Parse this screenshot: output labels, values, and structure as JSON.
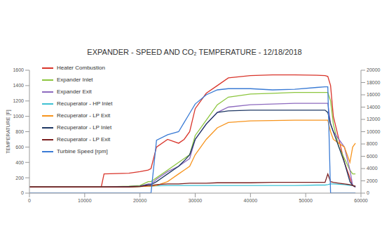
{
  "chart_data": {
    "type": "line",
    "title": "EXPANDER - SPEED AND CO₂ TEMPERATURE - 12/18/2018",
    "y_label": "TEMPERATURE [F]",
    "x": [
      0,
      10000,
      13000,
      13500,
      18000,
      20000,
      21500,
      22000,
      23000,
      25000,
      27000,
      28000,
      29000,
      30000,
      32000,
      34000,
      36000,
      40000,
      44000,
      48000,
      52000,
      53500,
      54000,
      54500,
      55000,
      56000,
      57000,
      58000,
      58500,
      59000
    ],
    "xlim": [
      0,
      60000
    ],
    "xticks": [
      0,
      10000,
      20000,
      30000,
      40000,
      50000,
      60000
    ],
    "ylim": [
      0,
      1600
    ],
    "yticks": [
      0,
      200,
      400,
      600,
      800,
      1000,
      1200,
      1400,
      1600
    ],
    "y2lim": [
      0,
      20000
    ],
    "y2ticks": [
      0,
      2000,
      4000,
      6000,
      8000,
      10000,
      12000,
      14000,
      16000,
      18000,
      20000
    ],
    "grid": false,
    "legend": "upper left",
    "series": [
      {
        "name": "Heater Combustion",
        "color": "#d9352b",
        "values": [
          80,
          80,
          80,
          250,
          260,
          280,
          300,
          320,
          600,
          700,
          650,
          700,
          800,
          1100,
          1300,
          1400,
          1500,
          1530,
          1540,
          1540,
          1535,
          1530,
          1520,
          1400,
          1000,
          700,
          400,
          200,
          100,
          80
        ]
      },
      {
        "name": "Expander Inlet",
        "color": "#8dc63f",
        "values": [
          80,
          80,
          80,
          80,
          90,
          100,
          150,
          150,
          200,
          300,
          400,
          450,
          500,
          750,
          950,
          1150,
          1250,
          1290,
          1300,
          1310,
          1310,
          1310,
          1310,
          1200,
          900,
          600,
          450,
          300,
          250,
          250
        ]
      },
      {
        "name": "Expander Exit",
        "color": "#8e6bbf",
        "values": [
          80,
          80,
          80,
          80,
          85,
          90,
          120,
          120,
          180,
          280,
          350,
          400,
          450,
          700,
          900,
          1050,
          1120,
          1150,
          1160,
          1170,
          1170,
          1170,
          1170,
          900,
          800,
          700,
          600,
          300,
          100,
          80
        ]
      },
      {
        "name": "Recuperator - HP Inlet",
        "color": "#3fc1d3",
        "values": [
          80,
          80,
          80,
          80,
          80,
          85,
          90,
          90,
          95,
          100,
          100,
          100,
          100,
          100,
          100,
          100,
          100,
          100,
          100,
          100,
          105,
          105,
          110,
          120,
          120,
          115,
          110,
          100,
          100,
          90
        ]
      },
      {
        "name": "Recuperator - LP  Exit",
        "color": "#f7941d",
        "values": [
          80,
          80,
          80,
          80,
          80,
          85,
          90,
          90,
          100,
          150,
          250,
          300,
          350,
          500,
          700,
          850,
          920,
          940,
          945,
          950,
          950,
          950,
          950,
          800,
          700,
          650,
          600,
          400,
          600,
          650
        ]
      },
      {
        "name": "Recuperator - LP Inlet",
        "color": "#1f3864",
        "values": [
          80,
          80,
          80,
          80,
          85,
          90,
          110,
          110,
          150,
          250,
          350,
          420,
          500,
          700,
          900,
          1050,
          1070,
          1080,
          1080,
          1080,
          1080,
          1080,
          1050,
          900,
          800,
          600,
          400,
          150,
          100,
          80
        ]
      },
      {
        "name": "Recuperator - LP Exit",
        "color": "#7b1f1f",
        "values": [
          80,
          80,
          80,
          80,
          80,
          85,
          100,
          100,
          110,
          120,
          120,
          125,
          130,
          130,
          130,
          135,
          135,
          135,
          140,
          140,
          140,
          140,
          250,
          150,
          140,
          130,
          120,
          110,
          100,
          90
        ]
      },
      {
        "name": "Turbine Speed [rpm]",
        "color": "#3a7bd5",
        "axis": "y2",
        "values": [
          0,
          0,
          0,
          0,
          0,
          0,
          0,
          0,
          8600,
          9500,
          10000,
          11500,
          13000,
          14500,
          16000,
          16800,
          17000,
          17000,
          16800,
          16900,
          17200,
          17300,
          17300,
          0,
          0,
          0,
          0,
          0,
          0,
          0
        ]
      }
    ]
  }
}
